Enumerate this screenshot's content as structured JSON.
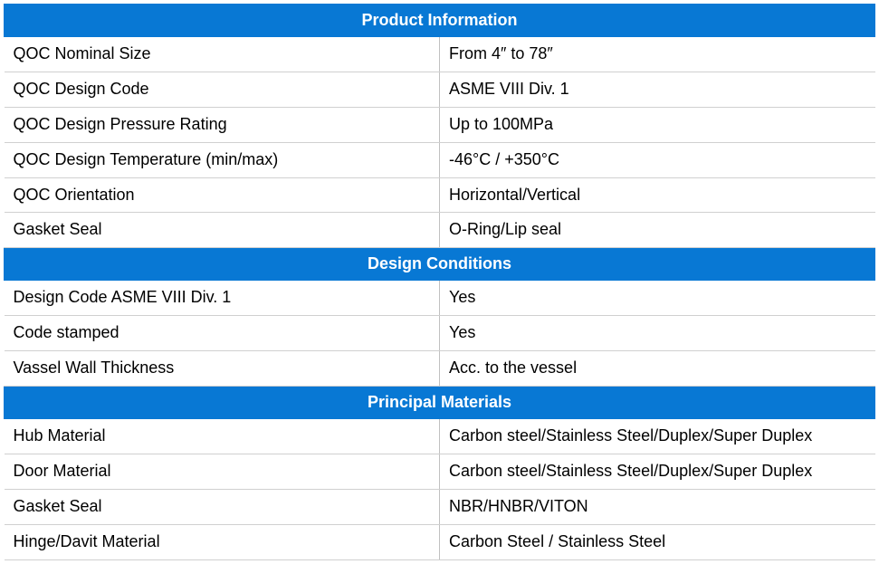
{
  "table": {
    "header_bg": "#0878d4",
    "header_color": "#ffffff",
    "row_border_color": "#d0d0d0",
    "font_family": "Arial",
    "header_fontsize": 18,
    "cell_fontsize": 18,
    "sections": [
      {
        "title": "Product Information",
        "rows": [
          {
            "label": "QOC Nominal Size",
            "value": "From 4″ to 78″"
          },
          {
            "label": "QOC Design Code",
            "value": "ASME VIII Div. 1"
          },
          {
            "label": "QOC Design Pressure Rating",
            "value": "Up to 100MPa"
          },
          {
            "label": "QOC Design Temperature (min/max)",
            "value": "-46°C / +350°C"
          },
          {
            "label": "QOC Orientation",
            "value": "Horizontal/Vertical"
          },
          {
            "label": "Gasket Seal",
            "value": "O-Ring/Lip seal"
          }
        ]
      },
      {
        "title": "Design Conditions",
        "rows": [
          {
            "label": "Design Code ASME VIII Div. 1",
            "value": "Yes"
          },
          {
            "label": "Code stamped",
            "value": "Yes"
          },
          {
            "label": "Vassel Wall Thickness",
            "value": "Acc. to the vessel"
          }
        ]
      },
      {
        "title": "Principal Materials",
        "rows": [
          {
            "label": "Hub Material",
            "value": "Carbon steel/Stainless Steel/Duplex/Super Duplex"
          },
          {
            "label": "Door Material",
            "value": "Carbon steel/Stainless Steel/Duplex/Super Duplex"
          },
          {
            "label": "Gasket Seal",
            "value": "NBR/HNBR/VITON"
          },
          {
            "label": "Hinge/Davit Material",
            "value": "Carbon Steel / Stainless Steel"
          }
        ]
      }
    ]
  }
}
